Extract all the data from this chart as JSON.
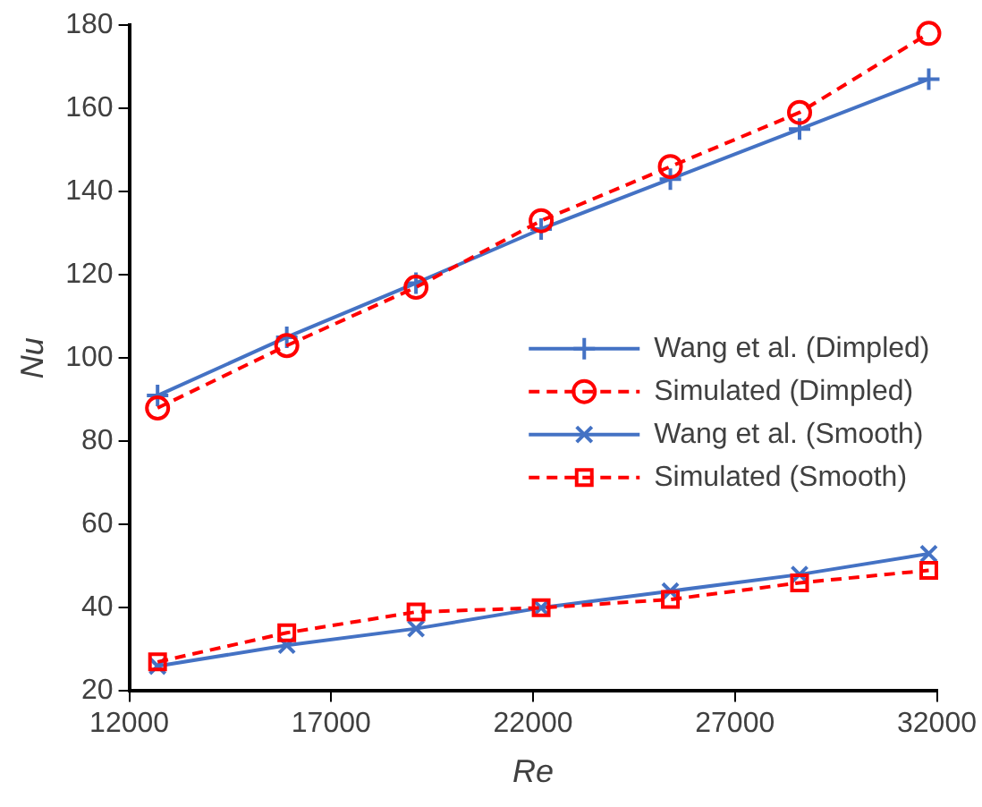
{
  "chart_data": {
    "type": "line",
    "xlabel": "Re",
    "ylabel": "Nu",
    "x": [
      12700,
      15900,
      19100,
      22200,
      25400,
      28600,
      31800
    ],
    "xlim": [
      12000,
      32000
    ],
    "xticks": [
      12000,
      17000,
      22000,
      27000,
      32000
    ],
    "ylim": [
      20,
      180
    ],
    "yticks": [
      20,
      40,
      60,
      80,
      100,
      120,
      140,
      160,
      180
    ],
    "grid": false,
    "legend": "right",
    "series": [
      {
        "name": "Wang et al. (Dimpled)",
        "color": "#4472c4",
        "marker": "cross",
        "line_style": "solid",
        "values": [
          91,
          105,
          118,
          131,
          143,
          155,
          167
        ]
      },
      {
        "name": "Simulated (Dimpled)",
        "color": "#ff0000",
        "marker": "circle",
        "line_style": "dashed",
        "values": [
          88,
          103,
          117,
          133,
          146,
          159,
          178
        ]
      },
      {
        "name": "Wang et al. (Smooth)",
        "color": "#4472c4",
        "marker": "x",
        "line_style": "solid",
        "values": [
          26,
          31,
          35,
          40,
          44,
          48,
          53
        ]
      },
      {
        "name": "Simulated (Smooth)",
        "color": "#ff0000",
        "marker": "square",
        "line_style": "dashed",
        "values": [
          27,
          34,
          39,
          40,
          42,
          46,
          49
        ]
      }
    ]
  }
}
